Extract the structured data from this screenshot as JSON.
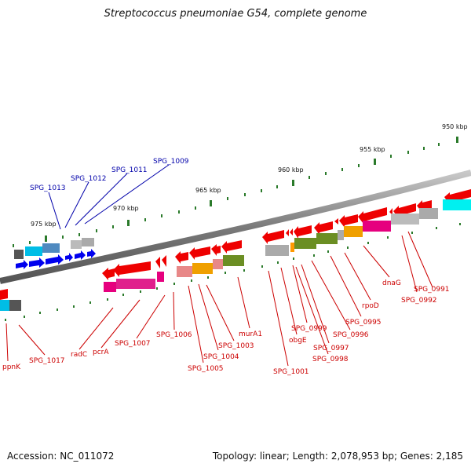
{
  "title": "Streptococcus pneumoniae G54, complete genome",
  "footer": {
    "accession": "Accession: NC_011072",
    "stats": "Topology: linear; Length: 2,078,953 bp; Genes: 2,185"
  },
  "colors": {
    "forward_label": "#0000aa",
    "reverse_label": "#cc0000",
    "tick": "#2a7a2a",
    "backbone": "#808080"
  },
  "scale_ticks": [
    "950 kbp",
    "955 kbp",
    "960 kbp",
    "965 kbp",
    "970 kbp",
    "975 kbp"
  ],
  "forward_genes": [
    "SPG_1013",
    "SPG_1012",
    "SPG_1011",
    "SPG_1009"
  ],
  "reverse_genes": [
    "ppnK",
    "SPG_1017",
    "radC",
    "pcrA",
    "SPG_1007",
    "SPG_1006",
    "SPG_1005",
    "SPG_1004",
    "SPG_1003",
    "murA1",
    "SPG_1001",
    "obgE",
    "SPG_0999",
    "SPG_0998",
    "SPG_0997",
    "SPG_0996",
    "SPG_0995",
    "rpoD",
    "dnaG",
    "SPG_0992",
    "SPG_0991"
  ]
}
